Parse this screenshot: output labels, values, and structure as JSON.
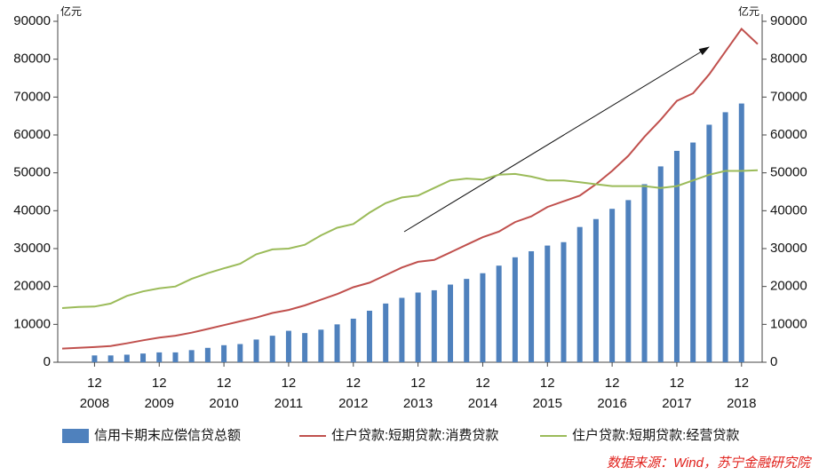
{
  "chart_data": {
    "type": "bar-line",
    "y_unit": "亿元",
    "y2_unit": "亿元",
    "source": "数据来源：Wind，苏宁金融研究院",
    "categories": [
      null,
      null,
      "12",
      null,
      null,
      null,
      "12",
      null,
      null,
      null,
      "12",
      null,
      null,
      null,
      "12",
      null,
      null,
      null,
      "12",
      null,
      null,
      null,
      "12",
      null,
      null,
      null,
      "12",
      null,
      null,
      null,
      "12",
      null,
      null,
      null,
      "12",
      null,
      null,
      null,
      "12",
      null,
      null,
      null,
      "12",
      null
    ],
    "years": [
      null,
      null,
      "2008",
      null,
      null,
      null,
      "2009",
      null,
      null,
      null,
      "2010",
      null,
      null,
      null,
      "2011",
      null,
      null,
      null,
      "2012",
      null,
      null,
      null,
      "2013",
      null,
      null,
      null,
      "2014",
      null,
      null,
      null,
      "2015",
      null,
      null,
      null,
      "2016",
      null,
      null,
      null,
      "2017",
      null,
      null,
      null,
      "2018",
      null
    ],
    "series": [
      {
        "name": "信用卡期末应偿信贷总额",
        "type": "bar",
        "color": "#4f81bd",
        "values": [
          null,
          null,
          1800,
          1800,
          2000,
          2300,
          2600,
          2600,
          3200,
          3800,
          4500,
          4800,
          6000,
          7000,
          8300,
          7700,
          8600,
          10000,
          11500,
          13600,
          15500,
          17000,
          18400,
          19000,
          20500,
          22000,
          23500,
          25500,
          27700,
          29300,
          30800,
          31700,
          35700,
          37800,
          40500,
          42800,
          47000,
          51700,
          55800,
          58000,
          62700,
          66000,
          68300,
          null
        ]
      },
      {
        "name": "住户贷款:短期贷款:消费贷款",
        "type": "line",
        "color": "#c0504d",
        "values": [
          3600,
          3800,
          4000,
          4300,
          5000,
          5800,
          6500,
          7000,
          7800,
          8800,
          9800,
          10800,
          11800,
          13000,
          13800,
          15000,
          16500,
          18000,
          19800,
          21000,
          23000,
          25000,
          26500,
          27000,
          29000,
          31000,
          33000,
          34500,
          37000,
          38500,
          41000,
          42500,
          44000,
          47000,
          50500,
          54500,
          59500,
          64000,
          69000,
          71000,
          76000,
          82000,
          88000,
          84000
        ]
      },
      {
        "name": "住户贷款:短期贷款:经营贷款",
        "type": "line",
        "color": "#9bbb59",
        "values": [
          14300,
          14600,
          14700,
          15500,
          17500,
          18700,
          19500,
          20000,
          22000,
          23500,
          24800,
          26000,
          28500,
          29800,
          30000,
          31000,
          33500,
          35500,
          36500,
          39500,
          42000,
          43500,
          44000,
          46000,
          48000,
          48500,
          48200,
          49500,
          49700,
          49000,
          48000,
          48000,
          47500,
          47000,
          46500,
          46500,
          46500,
          46000,
          46500,
          48000,
          49500,
          50500,
          50500,
          50700
        ]
      }
    ],
    "ylim": [
      0,
      90000
    ],
    "yticks": [
      0,
      10000,
      20000,
      30000,
      40000,
      50000,
      60000,
      70000,
      80000,
      90000
    ],
    "y2lim": [
      0,
      90000
    ],
    "y2ticks": [
      0,
      10000,
      20000,
      30000,
      40000,
      50000,
      60000,
      70000,
      80000,
      90000
    ],
    "legend": "bottom"
  }
}
